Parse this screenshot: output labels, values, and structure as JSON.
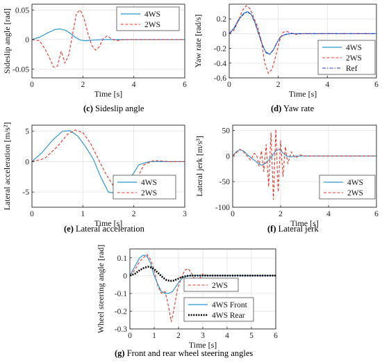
{
  "colors": {
    "fourWS": "#2f95d0",
    "twoWS": "#e8332a",
    "ref": "#2438c8",
    "rear": "#000000"
  },
  "chart_data": [
    {
      "id": "c",
      "type": "line",
      "caption": {
        "letter": "(c)",
        "text": "Sideslip angle"
      },
      "xlabel": "Time [s]",
      "ylabel": "Sideslip angle [rad]",
      "xlim": [
        0,
        6
      ],
      "ylim": [
        -0.065,
        0.06
      ],
      "xticks": [
        "0",
        "2",
        "4",
        "6"
      ],
      "xtickvals": [
        0,
        2,
        4,
        6
      ],
      "yticks": [
        "-0.05",
        "0",
        "0.05"
      ],
      "ytickvals": [
        -0.05,
        0,
        0.05
      ],
      "legend": "top-right",
      "grid": true,
      "series": [
        {
          "name": "4WS",
          "style": "fourWS",
          "x": [
            0,
            0.3,
            0.6,
            0.9,
            1.1,
            1.3,
            1.5,
            1.7,
            1.9,
            2.1,
            2.4,
            2.8,
            3.2,
            4,
            5,
            6
          ],
          "y": [
            0,
            0.004,
            0.011,
            0.017,
            0.018,
            0.016,
            0.011,
            0.004,
            -0.001,
            -0.002,
            -0.001,
            0,
            0,
            0,
            0,
            0
          ]
        },
        {
          "name": "2WS",
          "style": "twoWS",
          "x": [
            0,
            0.3,
            0.5,
            0.7,
            0.85,
            1.0,
            1.15,
            1.3,
            1.45,
            1.6,
            1.75,
            1.9,
            2.05,
            2.2,
            2.35,
            2.5,
            2.65,
            2.8,
            2.95,
            3.1,
            3.3,
            3.6,
            4,
            5,
            6
          ],
          "y": [
            0,
            -0.002,
            -0.015,
            -0.032,
            -0.047,
            -0.045,
            -0.02,
            -0.04,
            -0.025,
            0.01,
            0.045,
            0.05,
            0.035,
            0.01,
            -0.01,
            -0.018,
            -0.012,
            0.002,
            0.006,
            0.002,
            -0.002,
            0,
            0,
            0,
            0
          ]
        }
      ]
    },
    {
      "id": "d",
      "type": "line",
      "caption": {
        "letter": "(d)",
        "text": "Yaw rate"
      },
      "xlabel": "Time [s]",
      "ylabel": "Yaw rate [rad/s]",
      "xlim": [
        0,
        6
      ],
      "ylim": [
        -0.6,
        0.4
      ],
      "xticks": [
        "0",
        "2",
        "4",
        "6"
      ],
      "xtickvals": [
        0,
        2,
        4,
        6
      ],
      "yticks": [
        "-0.6",
        "-0.4",
        "-0.2",
        "0",
        "0.2"
      ],
      "ytickvals": [
        -0.6,
        -0.4,
        -0.2,
        0,
        0.2
      ],
      "legend": "bottom-right",
      "grid": true,
      "series": [
        {
          "name": "4WS",
          "style": "fourWS",
          "x": [
            0,
            0.2,
            0.4,
            0.6,
            0.75,
            0.9,
            1.05,
            1.2,
            1.35,
            1.5,
            1.65,
            1.8,
            1.95,
            2.1,
            2.3,
            2.5,
            3,
            6
          ],
          "y": [
            0,
            0.08,
            0.2,
            0.28,
            0.3,
            0.26,
            0.15,
            0.0,
            -0.15,
            -0.26,
            -0.28,
            -0.22,
            -0.12,
            -0.04,
            -0.01,
            0,
            0,
            0
          ]
        },
        {
          "name": "2WS",
          "style": "twoWS",
          "x": [
            0,
            0.2,
            0.4,
            0.55,
            0.7,
            0.85,
            1.0,
            1.15,
            1.3,
            1.45,
            1.6,
            1.75,
            1.9,
            2.05,
            2.2,
            2.35,
            2.5,
            2.7,
            3.0,
            3.3,
            6
          ],
          "y": [
            0,
            0.05,
            0.2,
            0.32,
            0.38,
            0.34,
            0.22,
            0.1,
            -0.08,
            -0.4,
            -0.54,
            -0.48,
            -0.3,
            -0.1,
            0.02,
            0.03,
            0.01,
            -0.01,
            0,
            0,
            0
          ]
        },
        {
          "name": "Ref",
          "style": "ref",
          "x": [
            0,
            0.2,
            0.4,
            0.6,
            0.75,
            0.9,
            1.05,
            1.2,
            1.35,
            1.5,
            1.65,
            1.8,
            1.95,
            2.1,
            2.3,
            2.5,
            3,
            6
          ],
          "y": [
            0,
            0.07,
            0.19,
            0.27,
            0.29,
            0.26,
            0.15,
            0.0,
            -0.15,
            -0.25,
            -0.28,
            -0.22,
            -0.12,
            -0.04,
            -0.01,
            0,
            0,
            0
          ]
        }
      ]
    },
    {
      "id": "e",
      "type": "line",
      "caption": {
        "letter": "(e)",
        "text": "Lateral acceleration"
      },
      "xlabel": "Time [s]",
      "ylabel": "Lateral acceleration [m/s²]",
      "xlim": [
        0,
        3
      ],
      "ylim": [
        -7.5,
        6
      ],
      "xticks": [
        "0",
        "1",
        "2",
        "3"
      ],
      "xtickvals": [
        0,
        1,
        2,
        3
      ],
      "yticks": [
        "-5",
        "0",
        "5"
      ],
      "ytickvals": [
        -5,
        0,
        5
      ],
      "legend": "bottom-right",
      "grid": true,
      "series": [
        {
          "name": "4WS",
          "style": "fourWS",
          "x": [
            0,
            0.2,
            0.4,
            0.6,
            0.75,
            0.9,
            1.05,
            1.2,
            1.35,
            1.5,
            1.65,
            1.8,
            1.95,
            2.1,
            2.3,
            2.5,
            3
          ],
          "y": [
            0,
            1.5,
            3.5,
            5,
            5.1,
            4.2,
            2.5,
            0.5,
            -2.5,
            -5,
            -5.2,
            -4.5,
            -2.5,
            -0.5,
            0,
            0,
            0
          ]
        },
        {
          "name": "2WS",
          "style": "twoWS",
          "x": [
            0,
            0.25,
            0.5,
            0.7,
            0.85,
            1.0,
            1.15,
            1.3,
            1.45,
            1.6,
            1.75,
            1.9,
            2.05,
            2.2,
            2.4,
            2.7,
            3
          ],
          "y": [
            0,
            0.5,
            2.5,
            4.5,
            5.2,
            4.8,
            3.0,
            0.5,
            -2.0,
            -4.0,
            -5.5,
            -5.2,
            -3.0,
            -0.5,
            0.2,
            0,
            0
          ]
        }
      ]
    },
    {
      "id": "f",
      "type": "line",
      "caption": {
        "letter": "(f)",
        "text": "Lateral jerk"
      },
      "xlabel": "Time [s]",
      "ylabel": "Lateral jerk [m/s³]",
      "xlim": [
        0,
        6
      ],
      "ylim": [
        -100,
        60
      ],
      "xticks": [
        "0",
        "2",
        "4",
        "6"
      ],
      "xtickvals": [
        0,
        2,
        4,
        6
      ],
      "yticks": [
        "-100",
        "-50",
        "0",
        "50"
      ],
      "ytickvals": [
        -100,
        -50,
        0,
        50
      ],
      "legend": "bottom-right",
      "grid": true,
      "series": [
        {
          "name": "4WS",
          "style": "fourWS",
          "x": [
            0,
            0.15,
            0.3,
            0.45,
            0.6,
            0.75,
            0.9,
            1.05,
            1.2,
            1.35,
            1.5,
            1.65,
            1.8,
            1.95,
            2.1,
            2.25,
            2.4,
            2.6,
            3,
            6
          ],
          "y": [
            0,
            8,
            12,
            10,
            3,
            -3,
            -8,
            -14,
            -18,
            -15,
            -8,
            0,
            10,
            13,
            6,
            0,
            -2,
            0,
            0,
            0
          ]
        },
        {
          "name": "2WS",
          "style": "twoWS",
          "x": [
            0,
            0.15,
            0.3,
            0.45,
            0.6,
            0.75,
            0.9,
            1.0,
            1.1,
            1.2,
            1.3,
            1.4,
            1.5,
            1.6,
            1.7,
            1.8,
            1.9,
            2.0,
            2.1,
            2.2,
            2.3,
            2.45,
            2.6,
            2.8,
            3.0,
            3.3,
            6
          ],
          "y": [
            0,
            6,
            13,
            8,
            0,
            -8,
            5,
            2,
            -20,
            10,
            -30,
            22,
            -60,
            45,
            -85,
            52,
            -70,
            30,
            -40,
            18,
            -15,
            8,
            -4,
            2,
            0,
            0,
            0
          ]
        }
      ]
    },
    {
      "id": "g",
      "type": "line",
      "caption": {
        "letter": "(g)",
        "text": "Front and rear wheel steering angles"
      },
      "xlabel": "Time [s]",
      "ylabel": "Wheel steering angle [rad]",
      "xlim": [
        0,
        6
      ],
      "ylim": [
        -0.3,
        0.15
      ],
      "xticks": [
        "0",
        "1",
        "2",
        "3",
        "4",
        "5",
        "6"
      ],
      "xtickvals": [
        0,
        1,
        2,
        3,
        4,
        5,
        6
      ],
      "yticks": [
        "-0.3",
        "-0.2",
        "-0.1",
        "0",
        "0.1"
      ],
      "ytickvals": [
        -0.3,
        -0.2,
        -0.1,
        0,
        0.1
      ],
      "legend": "bottom-right",
      "grid": true,
      "series": [
        {
          "name": "2WS",
          "style": "twoWS",
          "x": [
            0,
            0.2,
            0.4,
            0.55,
            0.7,
            0.85,
            1.0,
            1.15,
            1.3,
            1.45,
            1.6,
            1.7,
            1.8,
            1.95,
            2.1,
            2.25,
            2.4,
            2.55,
            2.7,
            2.85,
            3.0,
            3.2,
            3.4,
            6
          ],
          "y": [
            0,
            0.03,
            0.08,
            0.1,
            0.12,
            0.09,
            0.03,
            -0.06,
            -0.1,
            -0.09,
            -0.18,
            -0.26,
            -0.2,
            -0.08,
            -0.02,
            0.03,
            0.04,
            0.01,
            -0.03,
            -0.02,
            0.01,
            0,
            0,
            0
          ]
        },
        {
          "name": "4WS Front",
          "style": "fourWS",
          "x": [
            0,
            0.2,
            0.4,
            0.55,
            0.7,
            0.85,
            1.0,
            1.15,
            1.3,
            1.45,
            1.6,
            1.75,
            1.9,
            2.05,
            2.2,
            2.4,
            6
          ],
          "y": [
            0,
            0.05,
            0.1,
            0.115,
            0.11,
            0.07,
            0.0,
            -0.05,
            -0.09,
            -0.1,
            -0.1,
            -0.09,
            -0.06,
            -0.03,
            -0.01,
            0,
            0
          ]
        },
        {
          "name": "4WS Rear",
          "style": "rear",
          "x": [
            0,
            0.2,
            0.4,
            0.6,
            0.75,
            0.9,
            1.05,
            1.2,
            1.35,
            1.5,
            1.65,
            1.8,
            1.95,
            2.1,
            2.3,
            2.5,
            3,
            6
          ],
          "y": [
            0,
            0.01,
            0.03,
            0.045,
            0.05,
            0.045,
            0.03,
            0.01,
            -0.01,
            -0.025,
            -0.03,
            -0.028,
            -0.02,
            -0.01,
            -0.003,
            0,
            0,
            0
          ]
        }
      ]
    }
  ]
}
